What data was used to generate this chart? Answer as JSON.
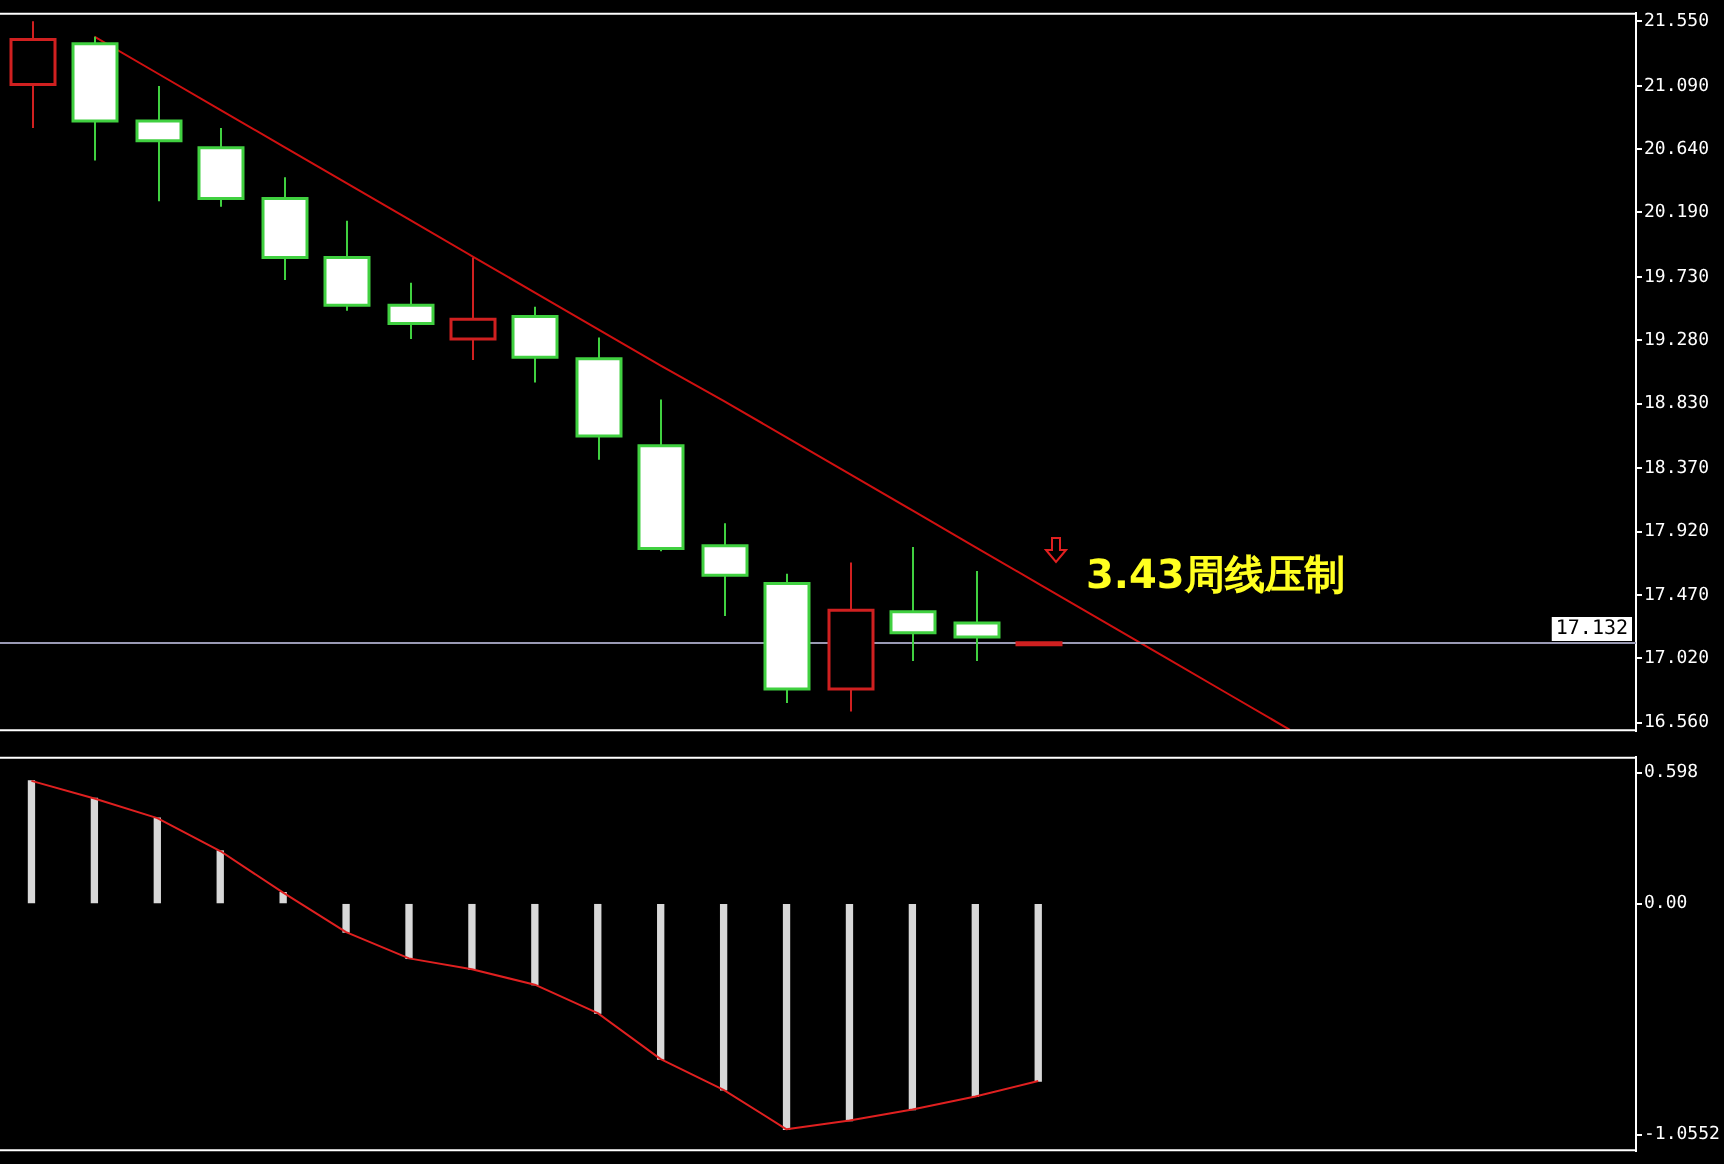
{
  "chart_data": [
    {
      "type": "candlestick",
      "categories": [
        null,
        null,
        null,
        null,
        null,
        null,
        null,
        null,
        null,
        null,
        null,
        null,
        null,
        null,
        null,
        null,
        null,
        null,
        null,
        null,
        null,
        null,
        null,
        null,
        null,
        null
      ],
      "ohlc": [
        [
          21.1,
          21.55,
          20.79,
          21.42
        ],
        [
          21.39,
          21.44,
          20.56,
          20.84
        ],
        [
          20.84,
          21.09,
          20.27,
          20.7
        ],
        [
          20.65,
          20.79,
          20.23,
          20.29
        ],
        [
          20.29,
          20.44,
          19.71,
          19.87
        ],
        [
          19.87,
          20.13,
          19.49,
          19.53
        ],
        [
          19.53,
          19.69,
          19.29,
          19.4
        ],
        [
          19.29,
          19.87,
          19.14,
          19.43
        ],
        [
          19.45,
          19.52,
          18.98,
          19.16
        ],
        [
          19.15,
          19.3,
          18.43,
          18.6
        ],
        [
          18.53,
          18.86,
          17.78,
          17.8
        ],
        [
          17.82,
          17.98,
          17.32,
          17.61
        ],
        [
          17.55,
          17.62,
          16.7,
          16.8
        ],
        [
          16.8,
          17.7,
          16.64,
          17.36
        ],
        [
          17.35,
          17.81,
          17.0,
          17.2
        ],
        [
          17.27,
          17.64,
          17.0,
          17.17
        ],
        [
          17.13,
          17.13,
          17.13,
          17.13
        ],
        null,
        null,
        null,
        null,
        null,
        null,
        null,
        null,
        null
      ],
      "colors": [
        "#d02020",
        "#40d040",
        "#40d040",
        "#40d040",
        "#40d040",
        "#40d040",
        "#40d040",
        "#d02020",
        "#40d040",
        "#40d040",
        "#40d040",
        "#40d040",
        "#40d040",
        "#d02020",
        "#40d040",
        "#40d040",
        "#d02020",
        null,
        null,
        null,
        null,
        null,
        null,
        null,
        null,
        null
      ],
      "series": [
        {
          "type": "line",
          "values": [
            null,
            21.44,
            21.18,
            20.92,
            20.66,
            20.4,
            20.14,
            19.88,
            19.62,
            19.36,
            19.1,
            18.85,
            18.59,
            18.33,
            18.07,
            17.81,
            17.55,
            17.29,
            17.03,
            16.77,
            16.51,
            null,
            null,
            null,
            null,
            null
          ],
          "color": "#d01010"
        }
      ],
      "ylim": [
        16.5,
        21.61
      ],
      "yticks": [
        {
          "value": 21.55,
          "label": "21.550"
        },
        {
          "value": 21.09,
          "label": "21.090"
        },
        {
          "value": 20.64,
          "label": "20.640"
        },
        {
          "value": 20.19,
          "label": "20.190"
        },
        {
          "value": 19.73,
          "label": "19.730"
        },
        {
          "value": 19.28,
          "label": "19.280"
        },
        {
          "value": 18.83,
          "label": "18.830"
        },
        {
          "value": 18.37,
          "label": "18.370"
        },
        {
          "value": 17.92,
          "label": "17.920"
        },
        {
          "value": 17.47,
          "label": "17.470"
        },
        {
          "value": 17.02,
          "label": "17.020"
        },
        {
          "value": 16.56,
          "label": "16.560"
        }
      ],
      "tick_labels": "y",
      "ref_lines": [
        {
          "axis": "y",
          "value": 17.132,
          "label": "17.132",
          "color": "#9a9ab4"
        }
      ],
      "annotations": [
        "3.43周线压制"
      ]
    },
    {
      "type": "bar",
      "categories": [
        null,
        null,
        null,
        null,
        null,
        null,
        null,
        null,
        null,
        null,
        null,
        null,
        null,
        null,
        null,
        null,
        null,
        null,
        null,
        null,
        null,
        null,
        null,
        null,
        null,
        null
      ],
      "ylim": [
        -1.13,
        0.67
      ],
      "yticks": [
        0.598,
        {
          "value": 0,
          "label": "0.00"
        },
        -1.0552
      ],
      "tick_labels": "y",
      "series": [
        {
          "type": "bar",
          "color": "#d8d8d8",
          "values": [
            0.56,
            0.48,
            0.39,
            0.24,
            0.05,
            -0.13,
            -0.25,
            -0.3,
            -0.37,
            -0.5,
            -0.71,
            -0.85,
            -1.03,
            -0.99,
            -0.94,
            -0.88,
            -0.81,
            null,
            null,
            null,
            null,
            null,
            null,
            null,
            null,
            null
          ]
        },
        {
          "type": "line",
          "color": "#e02020",
          "values": [
            0.56,
            0.48,
            0.39,
            0.24,
            0.05,
            -0.13,
            -0.25,
            -0.3,
            -0.37,
            -0.5,
            -0.71,
            -0.85,
            -1.03,
            -0.99,
            -0.94,
            -0.88,
            -0.81,
            null,
            null,
            null,
            null,
            null,
            null,
            null,
            null,
            null
          ]
        }
      ]
    }
  ]
}
